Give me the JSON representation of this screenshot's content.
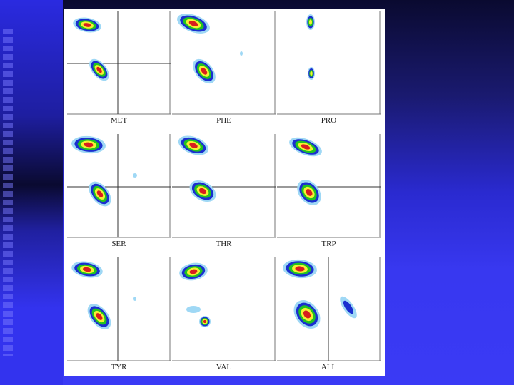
{
  "panels": [
    {
      "label": "MET"
    },
    {
      "label": "PHE"
    },
    {
      "label": "PRO"
    },
    {
      "label": "SER"
    },
    {
      "label": "THR"
    },
    {
      "label": "TRP"
    },
    {
      "label": "TYR"
    },
    {
      "label": "VAL"
    },
    {
      "label": "ALL"
    }
  ]
}
